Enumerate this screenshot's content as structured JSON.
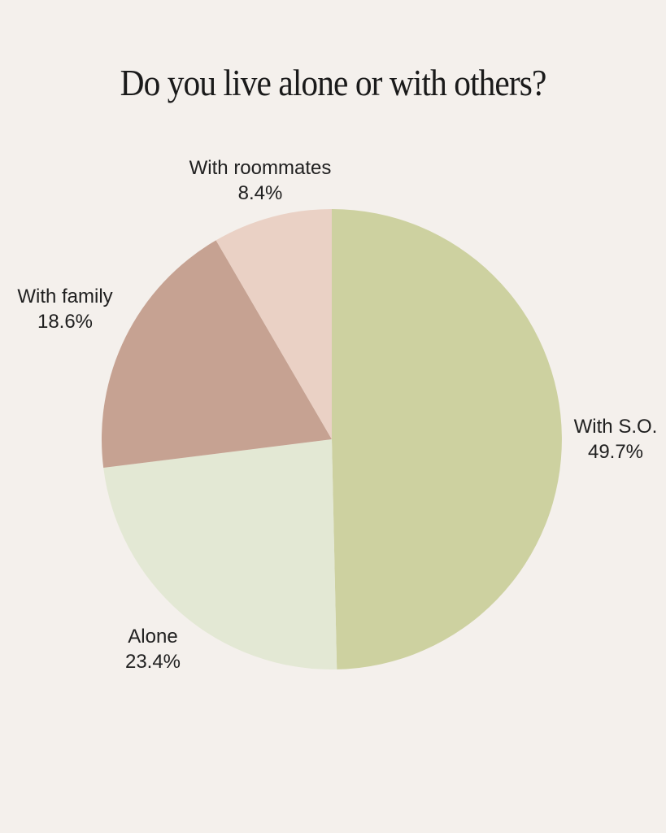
{
  "page": {
    "background_color": "#F4F0EC",
    "title_color": "#1A1A1A",
    "label_color": "#202020"
  },
  "chart_data": {
    "type": "pie",
    "title": "Do you live alone or with others?",
    "start_angle": "12 o'clock",
    "direction": "clockwise",
    "legend_position": "none",
    "labels_outside": true,
    "slices": [
      {
        "label": "With S.O.",
        "value": 49.7,
        "percent_text": "49.7%",
        "color": "#CDD1A0"
      },
      {
        "label": "Alone",
        "value": 23.4,
        "percent_text": "23.4%",
        "color": "#E3E8D4"
      },
      {
        "label": "With family",
        "value": 18.6,
        "percent_text": "18.6%",
        "color": "#C6A292"
      },
      {
        "label": "With roommates",
        "value": 8.4,
        "percent_text": "8.4%",
        "color": "#EAD1C5"
      }
    ]
  }
}
